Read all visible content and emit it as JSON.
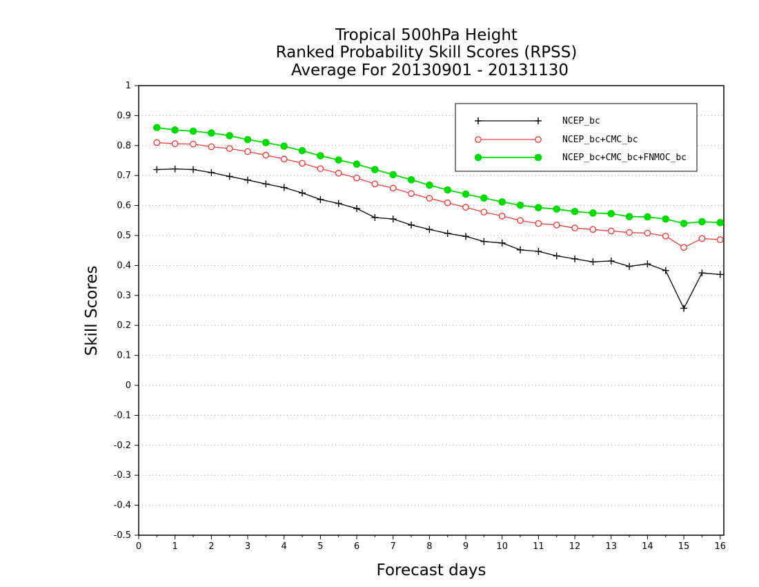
{
  "chart_data": {
    "type": "line",
    "title": [
      "Tropical 500hPa Height",
      "Ranked Probability Skill Scores (RPSS)",
      "Average For 20130901 - 20131130"
    ],
    "xlabel": "Forecast days",
    "ylabel": "Skill Scores",
    "xlim": [
      0,
      16.1
    ],
    "ylim": [
      -0.5,
      1
    ],
    "xticks": [
      "0",
      "1",
      "2",
      "3",
      "4",
      "5",
      "6",
      "7",
      "8",
      "9",
      "10",
      "11",
      "12",
      "13",
      "14",
      "15",
      "16"
    ],
    "yticks": [
      "-0.5",
      "-0.4",
      "-0.3",
      "-0.2",
      "-0.1",
      "0",
      "0.1",
      "0.2",
      "0.3",
      "0.4",
      "0.5",
      "0.6",
      "0.7",
      "0.8",
      "0.9",
      "1"
    ],
    "grid": "horizontal-dotted",
    "legend_position": "top-right",
    "x": [
      0.5,
      1,
      1.5,
      2,
      2.5,
      3,
      3.5,
      4,
      4.5,
      5,
      5.5,
      6,
      6.5,
      7,
      7.5,
      8,
      8.5,
      9,
      9.5,
      10,
      10.5,
      11,
      11.5,
      12,
      12.5,
      13,
      13.5,
      14,
      14.5,
      15,
      15.5,
      16
    ],
    "series": [
      {
        "name": "NCEP_bc",
        "color": "#000000",
        "marker": "plus",
        "values": [
          0.72,
          0.722,
          0.72,
          0.71,
          0.697,
          0.685,
          0.672,
          0.66,
          0.642,
          0.62,
          0.607,
          0.59,
          0.56,
          0.555,
          0.535,
          0.52,
          0.507,
          0.497,
          0.48,
          0.475,
          0.452,
          0.447,
          0.432,
          0.422,
          0.412,
          0.415,
          0.397,
          0.405,
          0.383,
          0.257,
          0.375,
          0.37
        ]
      },
      {
        "name": "NCEP_bc+CMC_bc",
        "color": "#f03c3c",
        "marker": "open-circle",
        "values": [
          0.81,
          0.806,
          0.805,
          0.796,
          0.79,
          0.78,
          0.768,
          0.755,
          0.741,
          0.723,
          0.708,
          0.692,
          0.672,
          0.658,
          0.64,
          0.624,
          0.609,
          0.594,
          0.578,
          0.565,
          0.55,
          0.54,
          0.535,
          0.525,
          0.52,
          0.515,
          0.51,
          0.508,
          0.498,
          0.46,
          0.49,
          0.486
        ]
      },
      {
        "name": "NCEP_bc+CMC_bc+FNMOC_bc",
        "color": "#00dc00",
        "marker": "filled-circle",
        "values": [
          0.86,
          0.852,
          0.848,
          0.842,
          0.833,
          0.82,
          0.81,
          0.798,
          0.783,
          0.766,
          0.752,
          0.738,
          0.72,
          0.703,
          0.686,
          0.668,
          0.652,
          0.638,
          0.625,
          0.612,
          0.601,
          0.593,
          0.588,
          0.58,
          0.575,
          0.573,
          0.563,
          0.562,
          0.555,
          0.54,
          0.546,
          0.543
        ]
      }
    ]
  }
}
